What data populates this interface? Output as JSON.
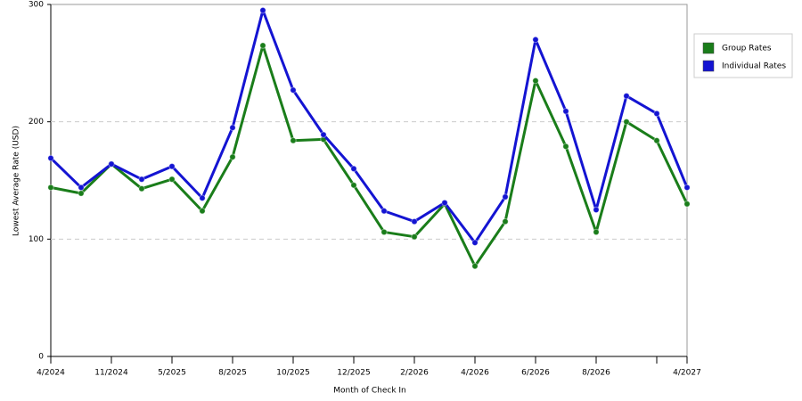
{
  "chart_data": {
    "type": "line",
    "x_label": "Month of Check In",
    "y_label": "Lowest Average Rate (USD)",
    "categories": [
      "4/2024",
      null,
      "11/2024",
      null,
      "5/2025",
      null,
      "8/2025",
      null,
      "10/2025",
      null,
      "12/2025",
      null,
      "2/2026",
      null,
      "4/2026",
      null,
      "6/2026",
      null,
      "8/2026",
      null,
      null,
      "4/2027"
    ],
    "series": [
      {
        "name": "Group Rates",
        "color": "#1a7d1a",
        "values": [
          144,
          139,
          164,
          143,
          151,
          124,
          170,
          265,
          184,
          185,
          146,
          106,
          102,
          130,
          77,
          115,
          235,
          179,
          106,
          200,
          184,
          130
        ]
      },
      {
        "name": "Individual Rates",
        "color": "#1414d2",
        "values": [
          169,
          144,
          164,
          151,
          162,
          135,
          195,
          295,
          227,
          189,
          160,
          124,
          115,
          131,
          97,
          136,
          270,
          209,
          125,
          222,
          207,
          144
        ]
      }
    ],
    "ylim": [
      0,
      300
    ],
    "yticks": [
      0,
      100,
      200,
      300
    ],
    "grid": true,
    "legend": "right"
  }
}
